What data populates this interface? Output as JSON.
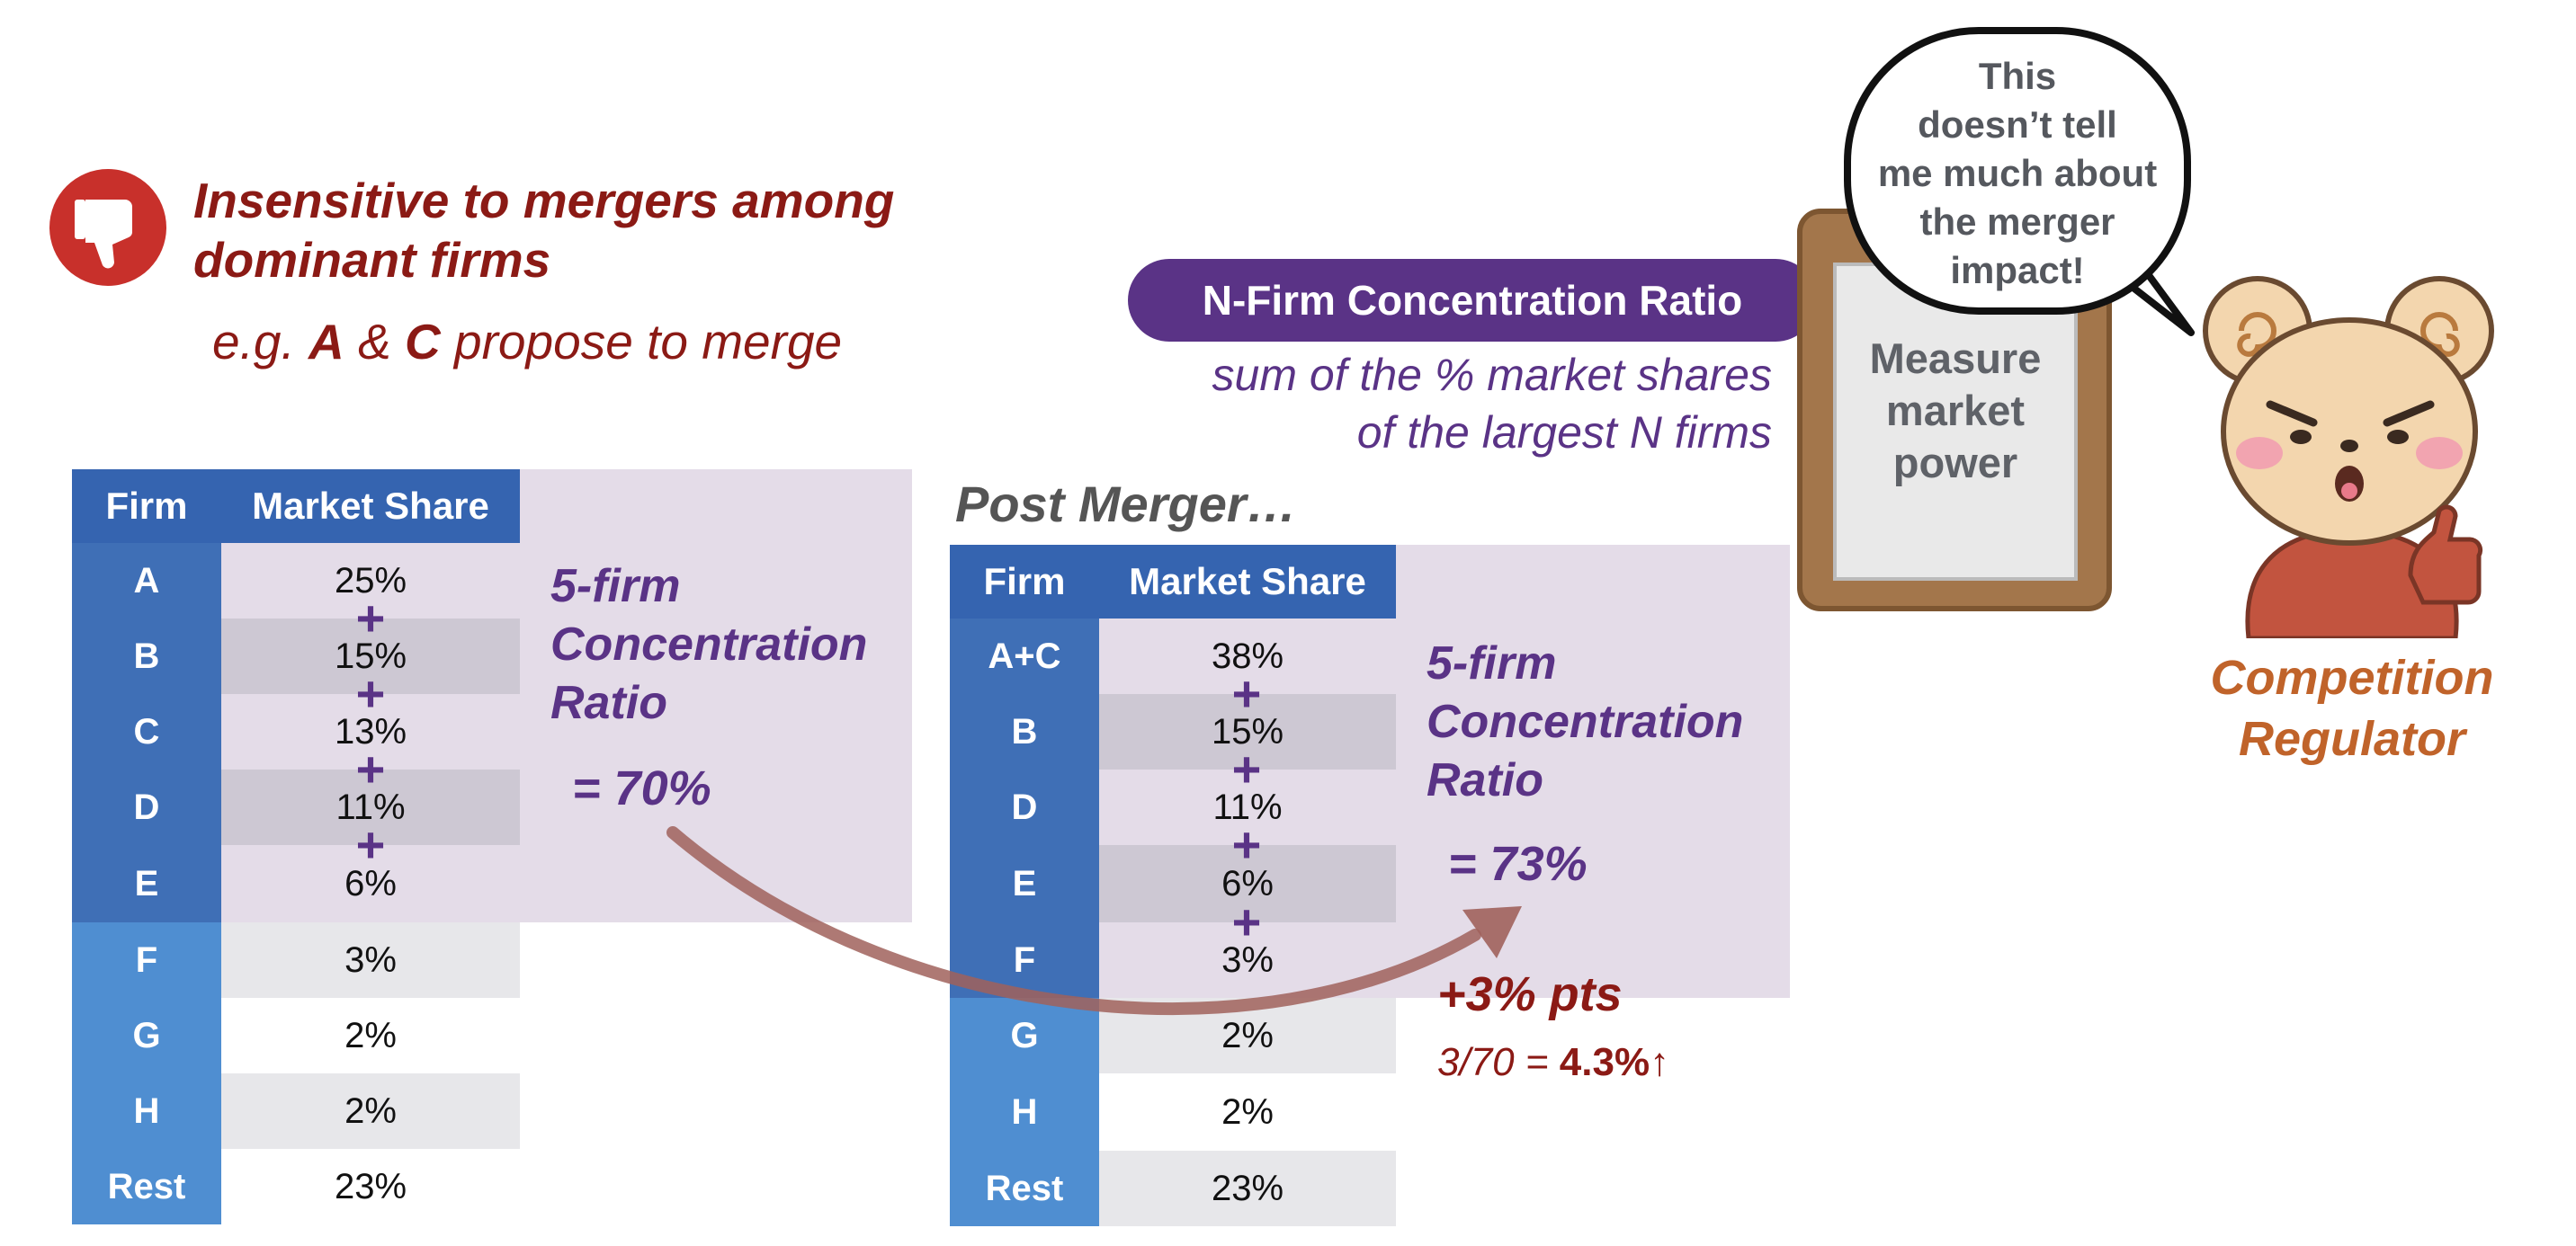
{
  "header": {
    "title_line1": "Insensitive to mergers among",
    "title_line2": "dominant firms",
    "example_prefix": "e.g.",
    "example_a": "A",
    "example_amp": "&",
    "example_c": "C",
    "example_suffix": "propose to merge"
  },
  "definition": {
    "pill_label": "N-Firm Concentration Ratio",
    "desc_line1": "sum of the % market shares",
    "desc_line2": "of the largest N firms"
  },
  "clipboard": {
    "line1": "Measure",
    "line2": "market",
    "line3": "power"
  },
  "speech": {
    "line1": "This",
    "line2": "doesn’t tell",
    "line3": "me much about",
    "line4": "the merger",
    "line5": "impact!"
  },
  "character": {
    "line1": "Competition",
    "line2": "Regulator"
  },
  "pre_table": {
    "col_firm": "Firm",
    "col_share": "Market Share",
    "rows": [
      {
        "firm": "A",
        "share": "25%"
      },
      {
        "firm": "B",
        "share": "15%"
      },
      {
        "firm": "C",
        "share": "13%"
      },
      {
        "firm": "D",
        "share": "11%"
      },
      {
        "firm": "E",
        "share": "6%"
      },
      {
        "firm": "F",
        "share": "3%"
      },
      {
        "firm": "G",
        "share": "2%"
      },
      {
        "firm": "H",
        "share": "2%"
      },
      {
        "firm": "Rest",
        "share": "23%"
      }
    ],
    "plus_symbol": "+",
    "ratio_line1": "5-firm",
    "ratio_line2": "Concentration",
    "ratio_line3": "Ratio",
    "ratio_value": "= 70%"
  },
  "post_table": {
    "title": "Post Merger…",
    "col_firm": "Firm",
    "col_share": "Market Share",
    "rows": [
      {
        "firm": "A+C",
        "share": "38%"
      },
      {
        "firm": "B",
        "share": "15%"
      },
      {
        "firm": "D",
        "share": "11%"
      },
      {
        "firm": "E",
        "share": "6%"
      },
      {
        "firm": "F",
        "share": "3%"
      },
      {
        "firm": "G",
        "share": "2%"
      },
      {
        "firm": "H",
        "share": "2%"
      },
      {
        "firm": "Rest",
        "share": "23%"
      }
    ],
    "plus_symbol": "+",
    "ratio_line1": "5-firm",
    "ratio_line2": "Concentration",
    "ratio_line3": "Ratio",
    "ratio_value": "= 73%"
  },
  "change": {
    "delta": "+3% pts",
    "calc_prefix": "3/70 =",
    "calc_value": "4.3%",
    "arrow": "↑"
  },
  "colors": {
    "dark_red": "#8b1a15",
    "purple": "#5a3386",
    "table_blue": "#3564b0",
    "orange": "#c0632a"
  }
}
